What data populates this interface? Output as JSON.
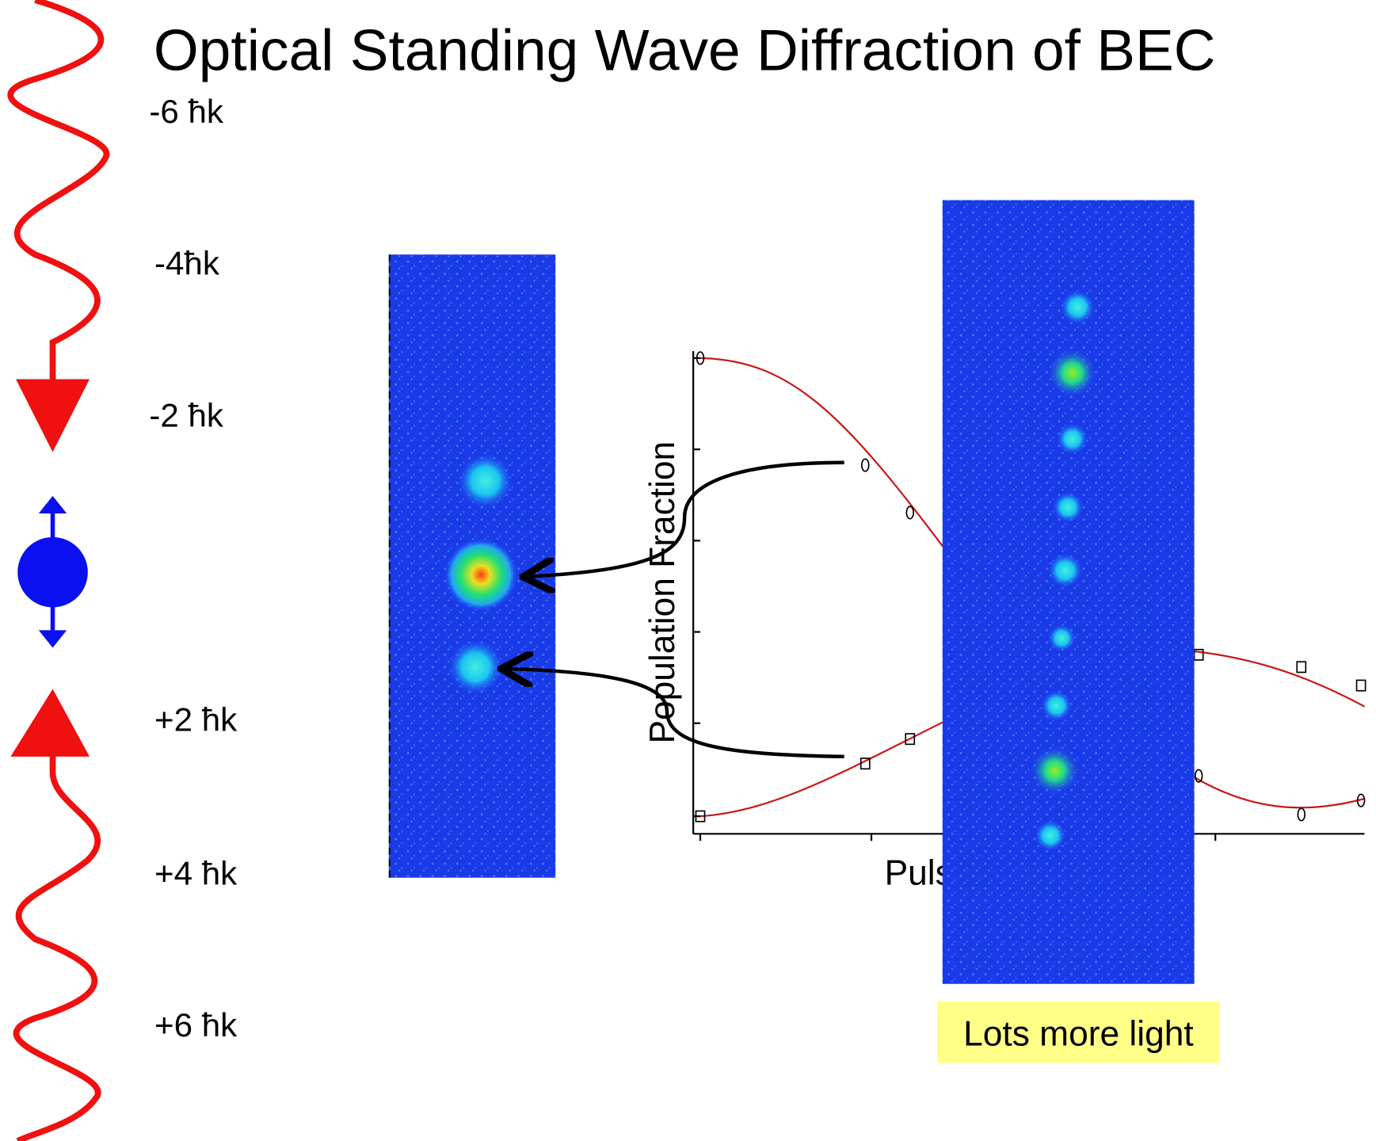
{
  "title": "Optical Standing Wave Diffraction of BEC",
  "momentum_labels": [
    "-6 ħk",
    "-4ħk",
    "-2 ħk",
    "+2 ħk",
    "+4 ħk",
    "+6 ħk"
  ],
  "plot": {
    "y_label": "Population Fraction",
    "x_label": "Puls"
  },
  "callout": "Lots more light"
}
